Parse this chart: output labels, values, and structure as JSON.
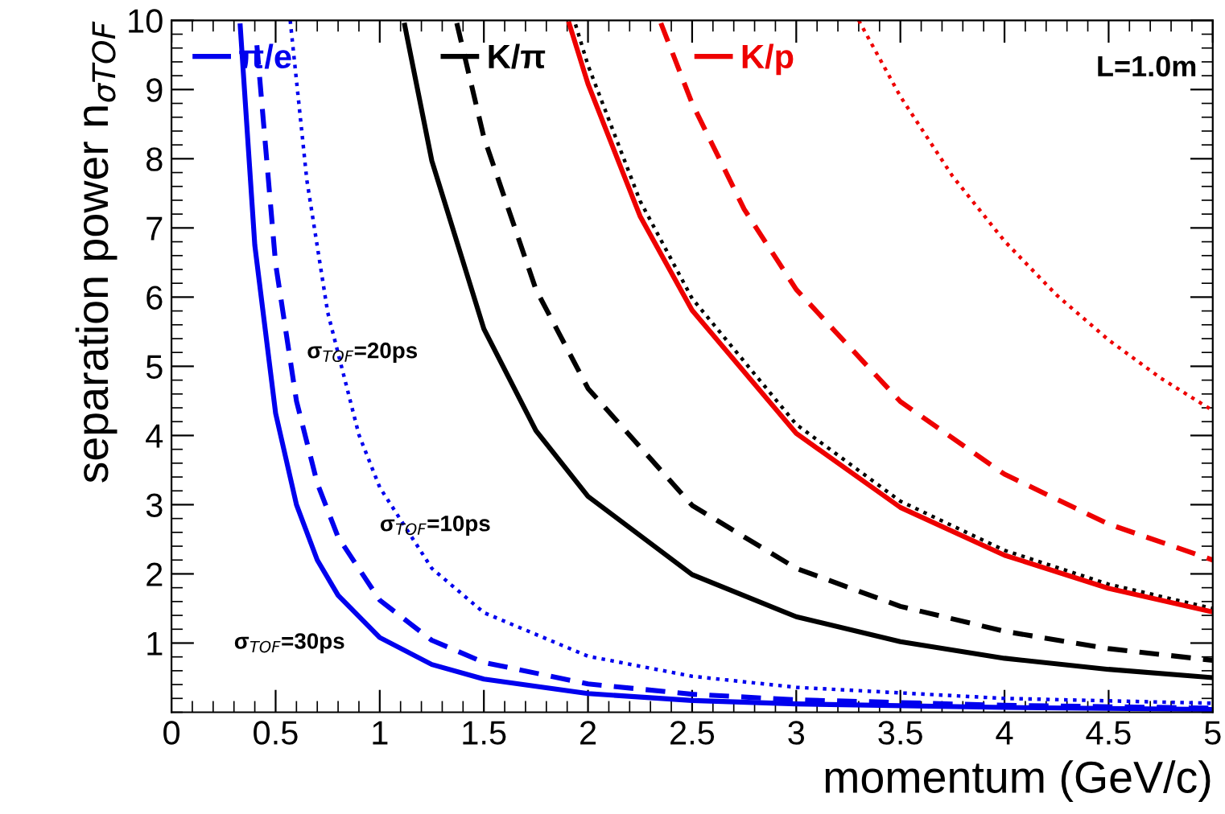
{
  "chart_data": {
    "type": "line",
    "xlabel": "momentum (GeV/c)",
    "ylabel": "separation power n$_{σTOF}$",
    "xlim": [
      0,
      5
    ],
    "ylim": [
      0,
      10
    ],
    "xticks": [
      0,
      0.5,
      1,
      1.5,
      2,
      2.5,
      3,
      3.5,
      4,
      4.5,
      5
    ],
    "yticks": [
      1,
      2,
      3,
      4,
      5,
      6,
      7,
      8,
      9,
      10
    ],
    "grid": false,
    "legend": "top left",
    "series": [
      {
        "name": "π/e",
        "color": "#0000ee",
        "line_style": "solid",
        "x": [
          0.33,
          0.4,
          0.5,
          0.6,
          0.7,
          0.8,
          1,
          1.25,
          1.5,
          2,
          2.5,
          3,
          4,
          5
        ],
        "values": [
          9.92,
          6.75,
          4.32,
          3.0,
          2.2,
          1.69,
          1.08,
          0.69,
          0.48,
          0.27,
          0.17,
          0.12,
          0.07,
          0.04
        ]
      },
      {
        "color": "#0000ee",
        "line_style": "dashed",
        "x": [
          0.41,
          0.5,
          0.6,
          0.7,
          0.8,
          1,
          1.25,
          1.5,
          2,
          2.5,
          3,
          4,
          5
        ],
        "values": [
          9.64,
          6.48,
          4.5,
          3.31,
          2.53,
          1.62,
          1.04,
          0.72,
          0.41,
          0.26,
          0.18,
          0.1,
          0.06
        ]
      },
      {
        "color": "#0000ee",
        "line_style": "dotted",
        "x": [
          0.57,
          0.65,
          0.75,
          0.9,
          1,
          1.25,
          1.5,
          2,
          2.5,
          3,
          4,
          5
        ],
        "values": [
          10.0,
          7.69,
          5.78,
          4.01,
          3.25,
          2.08,
          1.44,
          0.81,
          0.52,
          0.36,
          0.2,
          0.13
        ]
      },
      {
        "name": "K/π",
        "color": "#000000",
        "line_style": "solid",
        "x": [
          1.12,
          1.25,
          1.5,
          1.75,
          2,
          2.5,
          3,
          3.5,
          4,
          4.5,
          5
        ],
        "values": [
          9.93,
          7.97,
          5.54,
          4.07,
          3.12,
          1.99,
          1.38,
          1.02,
          0.78,
          0.62,
          0.5
        ]
      },
      {
        "color": "#000000",
        "line_style": "dashed",
        "x": [
          1.37,
          1.5,
          1.75,
          2,
          2.5,
          3,
          3.5,
          4,
          4.5,
          5
        ],
        "values": [
          9.96,
          8.31,
          6.11,
          4.68,
          2.99,
          2.08,
          1.53,
          1.17,
          0.92,
          0.75
        ]
      },
      {
        "color": "#000000",
        "line_style": "dotted",
        "x": [
          1.94,
          2,
          2.25,
          2.5,
          3,
          3.5,
          4,
          4.5,
          5
        ],
        "values": [
          9.94,
          9.35,
          7.39,
          5.98,
          4.16,
          3.05,
          2.34,
          1.85,
          1.5
        ]
      },
      {
        "name": "K/p",
        "color": "#ee0000",
        "line_style": "solid",
        "x": [
          1.91,
          2,
          2.25,
          2.5,
          3,
          3.5,
          4,
          4.5,
          5
        ],
        "values": [
          9.95,
          9.08,
          7.17,
          5.81,
          4.03,
          2.96,
          2.27,
          1.79,
          1.45
        ]
      },
      {
        "color": "#ee0000",
        "line_style": "dashed",
        "x": [
          2.35,
          2.5,
          2.75,
          3,
          3.5,
          4,
          4.5,
          5
        ],
        "values": [
          9.96,
          8.8,
          7.27,
          6.11,
          4.49,
          3.44,
          2.72,
          2.2
        ]
      },
      {
        "color": "#ee0000",
        "line_style": "dotted",
        "x": [
          3.3,
          3.5,
          3.75,
          4,
          4.25,
          4.5,
          4.75,
          5
        ],
        "values": [
          10.0,
          8.9,
          7.75,
          6.81,
          6.03,
          5.38,
          4.83,
          4.36
        ]
      }
    ],
    "annotations": [
      "σ$_{TOF}$=20ps",
      "σ$_{TOF}$=10ps",
      "σ$_{TOF}$=30ps",
      "L=1.0m"
    ]
  }
}
